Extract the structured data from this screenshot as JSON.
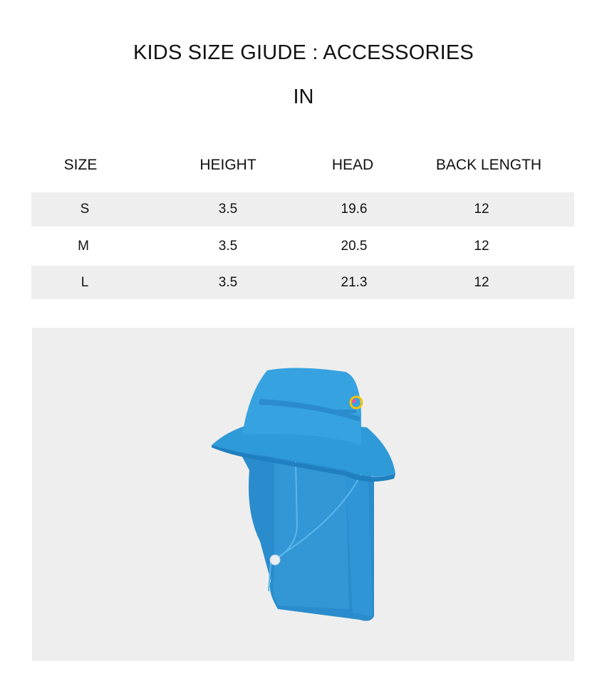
{
  "title": "KIDS SIZE GIUDE : ACCESSORIES",
  "unit": "IN",
  "table": {
    "headers": [
      "SIZE",
      "HEIGHT",
      "HEAD",
      "BACK LENGTH"
    ],
    "rows": [
      [
        "S",
        "3.5",
        "19.6",
        "12"
      ],
      [
        "M",
        "3.5",
        "20.5",
        "12"
      ],
      [
        "L",
        "3.5",
        "21.3",
        "12"
      ]
    ]
  },
  "product_image": {
    "subject": "blue bucket hat with neck flap",
    "color": "#2f9ad8"
  }
}
